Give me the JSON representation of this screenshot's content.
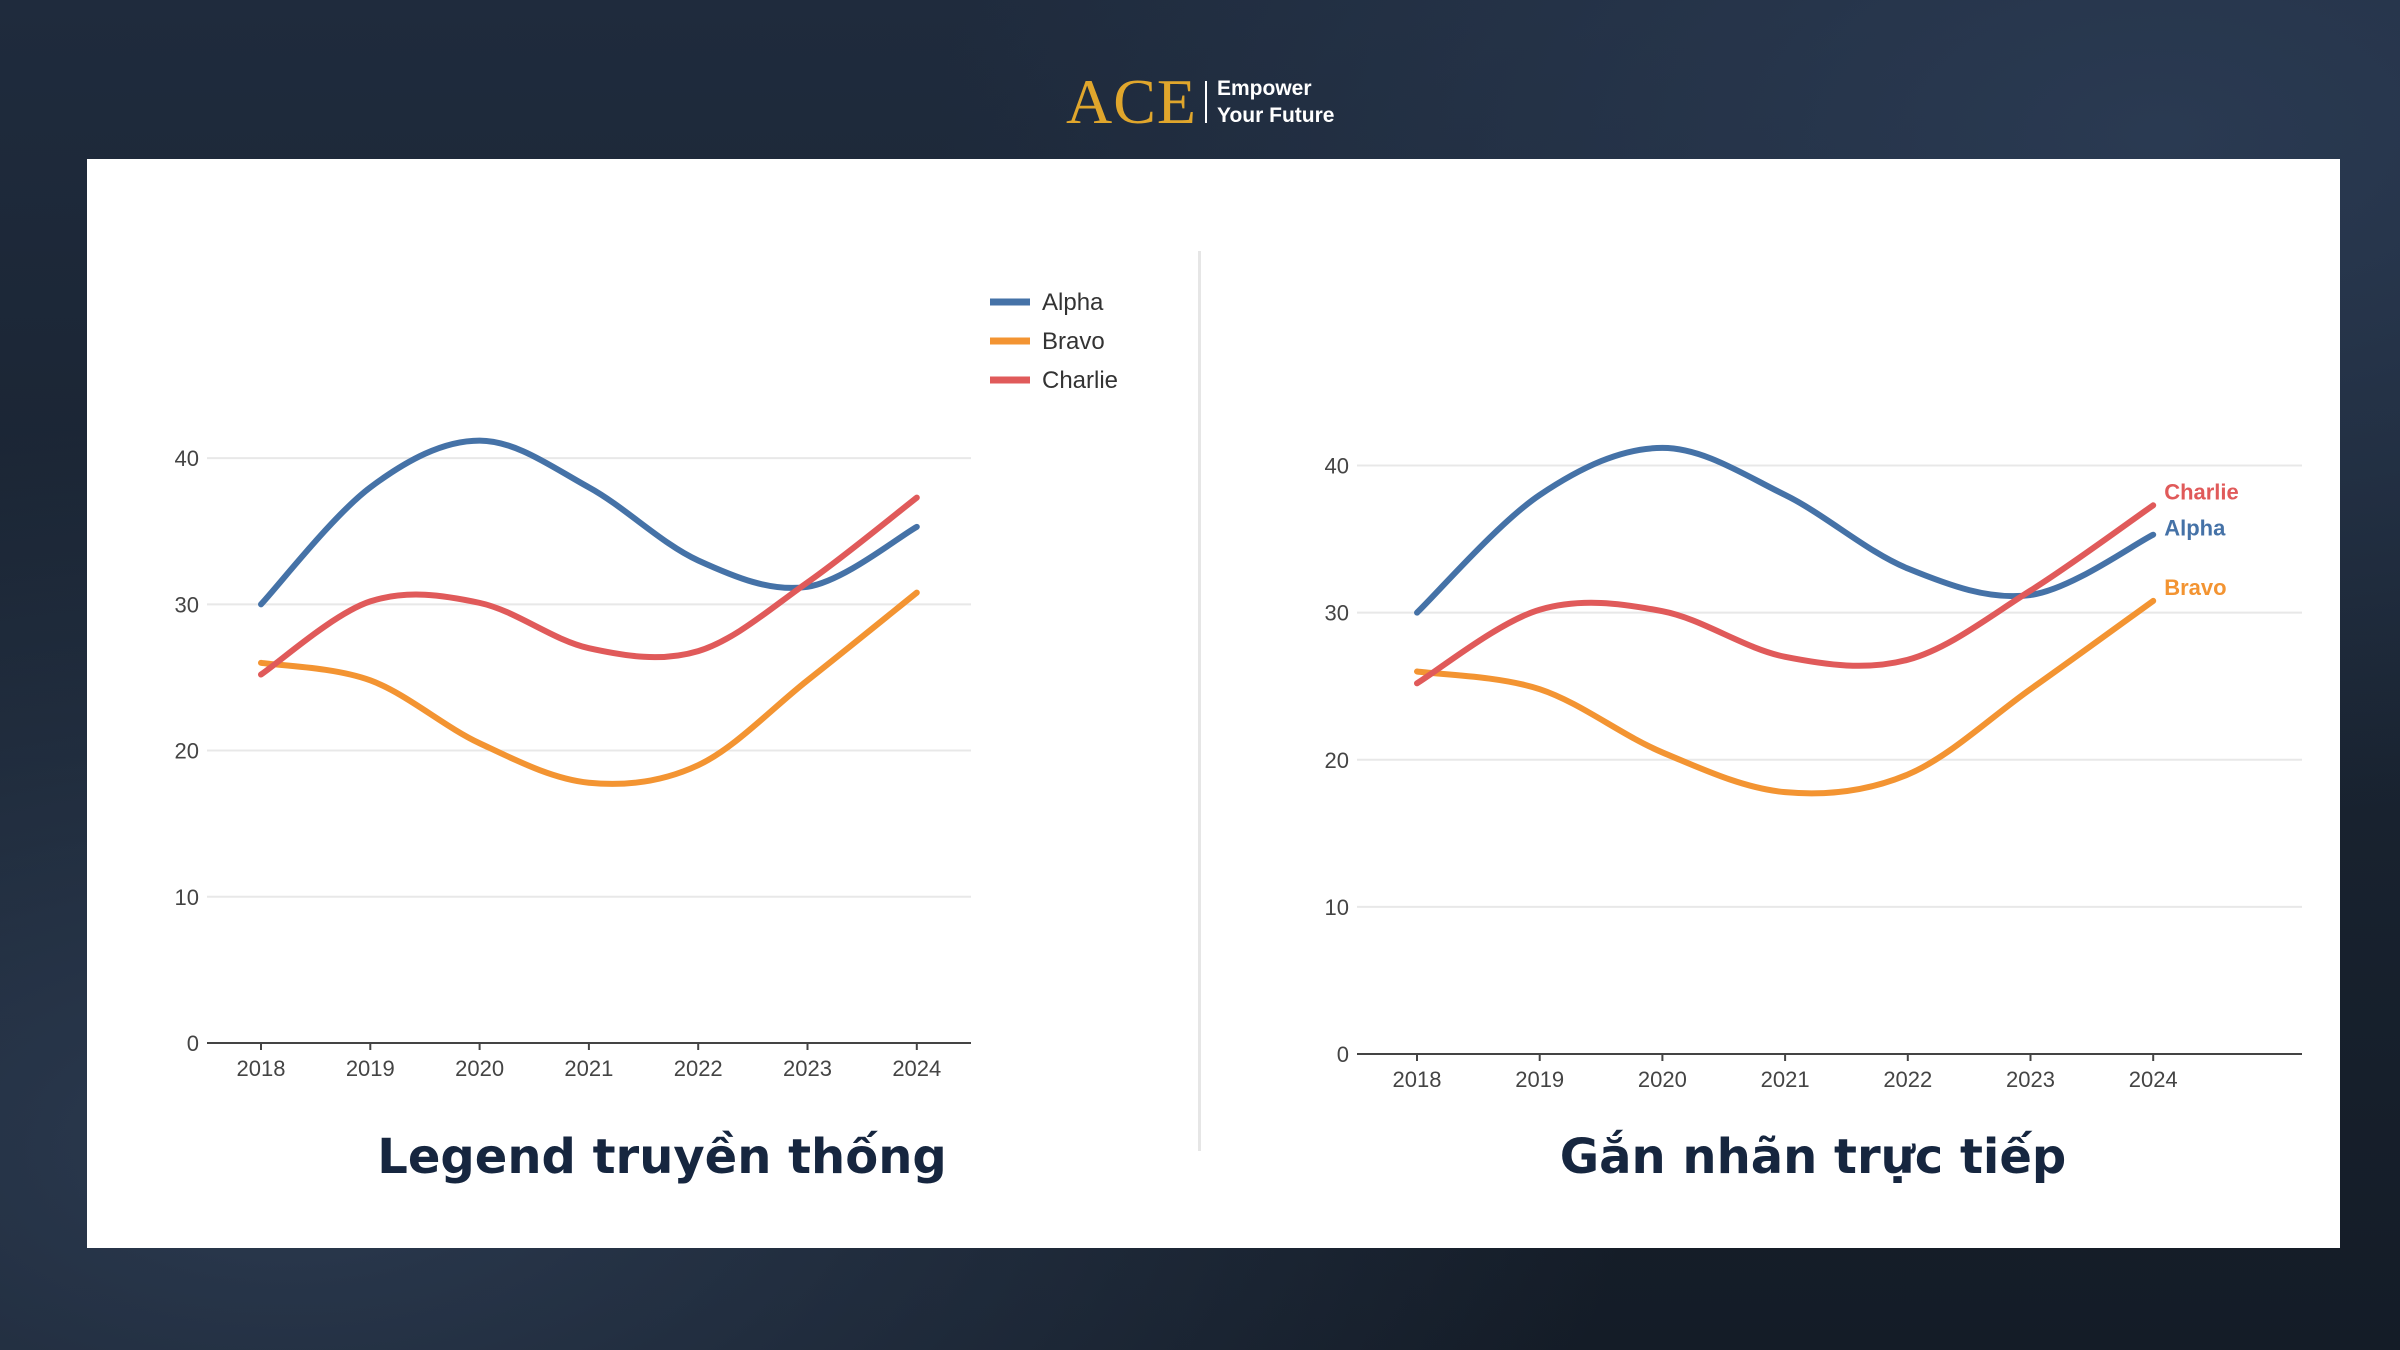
{
  "brand": {
    "logo": "ACE",
    "tagline_line1": "Empower",
    "tagline_line2": "Your Future"
  },
  "colors": {
    "background": "#1b2535",
    "logo": "#e0a62c",
    "caption": "#16263f"
  },
  "captions": {
    "left": "Legend truyền thống",
    "right": "Gắn nhãn trực tiếp"
  },
  "chart_data": [
    {
      "type": "line",
      "x": [
        "2018",
        "2019",
        "2020",
        "2021",
        "2022",
        "2023",
        "2024"
      ],
      "ylim": [
        0,
        45
      ],
      "yticks": [
        0,
        10,
        20,
        30,
        40
      ],
      "grid": true,
      "legend": "top-right",
      "labeling": "legend",
      "series": [
        {
          "name": "Alpha",
          "color": "#4572a7",
          "values": [
            30,
            38,
            41.2,
            38,
            33,
            31.2,
            35.3
          ]
        },
        {
          "name": "Bravo",
          "color": "#f39432",
          "values": [
            26,
            24.8,
            20.5,
            17.8,
            19,
            24.8,
            30.8
          ]
        },
        {
          "name": "Charlie",
          "color": "#e05a5a",
          "values": [
            25.2,
            30.2,
            30.1,
            27,
            26.8,
            31.5,
            37.3
          ]
        }
      ]
    },
    {
      "type": "line",
      "x": [
        "2018",
        "2019",
        "2020",
        "2021",
        "2022",
        "2023",
        "2024"
      ],
      "ylim": [
        0,
        45
      ],
      "yticks": [
        0,
        10,
        20,
        30,
        40
      ],
      "grid": true,
      "legend": "none",
      "labeling": "direct",
      "series": [
        {
          "name": "Alpha",
          "color": "#4572a7",
          "values": [
            30,
            38,
            41.2,
            38,
            33,
            31.2,
            35.3
          ]
        },
        {
          "name": "Bravo",
          "color": "#f39432",
          "values": [
            26,
            24.8,
            20.5,
            17.8,
            19,
            24.8,
            30.8
          ]
        },
        {
          "name": "Charlie",
          "color": "#e05a5a",
          "values": [
            25.2,
            30.2,
            30.1,
            27,
            26.8,
            31.5,
            37.3
          ]
        }
      ]
    }
  ]
}
